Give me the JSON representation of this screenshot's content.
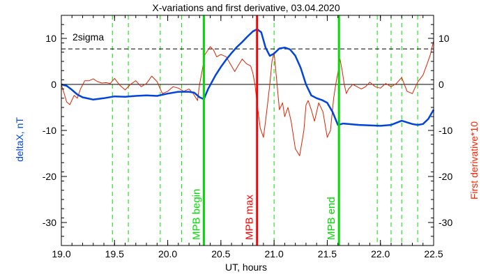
{
  "chart_data": {
    "type": "line",
    "title": "X-variations and first derivative, 03.04.2020",
    "xlabel": "UT, hours",
    "ylabel_left": "deltaX, nT",
    "ylabel_right": "First derivative*10",
    "xlim": [
      19.0,
      22.5
    ],
    "ylim": [
      -35,
      15
    ],
    "xticks": [
      19.0,
      19.5,
      20.0,
      20.5,
      21.0,
      21.5,
      22.0,
      22.5
    ],
    "xtick_labels": [
      "19.0",
      "19.5",
      "20.0",
      "20.5",
      "21.0",
      "21.5",
      "22.0",
      "22.5"
    ],
    "yticks": [
      10,
      0,
      -10,
      -20,
      -30
    ],
    "ytick_labels": [
      "10",
      "0",
      "-10",
      "-20",
      "-30"
    ],
    "threshold": {
      "label": "2sigma",
      "value": 7.7
    },
    "dashed_vlines": [
      19.48,
      19.63,
      19.93,
      20.13,
      21.0,
      21.97,
      22.1,
      22.2,
      22.35
    ],
    "markers": [
      {
        "label": "MPB begin",
        "x": 20.34,
        "color": "#00dd00"
      },
      {
        "label": "MPB max",
        "x": 20.84,
        "color": "#ff0000"
      },
      {
        "label": "MPB end",
        "x": 21.61,
        "color": "#00dd00"
      }
    ],
    "colors": {
      "deltaX": "#0044dd",
      "derivative": "#dd2200",
      "green": "#00dd00",
      "red": "#ff0000",
      "axis": "#000000",
      "left_label": "#0044dd",
      "right_label": "#ff2200"
    },
    "series": [
      {
        "name": "deltaX",
        "x": [
          19.0,
          19.05,
          19.1,
          19.15,
          19.2,
          19.3,
          19.4,
          19.5,
          19.6,
          19.7,
          19.8,
          19.9,
          20.0,
          20.1,
          20.2,
          20.25,
          20.3,
          20.34,
          20.38,
          20.45,
          20.5,
          20.55,
          20.6,
          20.65,
          20.7,
          20.75,
          20.8,
          20.84,
          20.88,
          20.92,
          20.96,
          21.0,
          21.05,
          21.1,
          21.15,
          21.2,
          21.25,
          21.3,
          21.35,
          21.4,
          21.45,
          21.5,
          21.55,
          21.6,
          21.65,
          21.7,
          21.8,
          21.9,
          22.0,
          22.1,
          22.2,
          22.3,
          22.35,
          22.4,
          22.45,
          22.5
        ],
        "values": [
          0.0,
          -0.3,
          -1.2,
          -2.2,
          -2.8,
          -3.3,
          -3.0,
          -2.6,
          -2.7,
          -2.5,
          -2.4,
          -2.5,
          -2.0,
          -1.6,
          -1.6,
          -1.8,
          -2.8,
          -3.2,
          -1.0,
          2.0,
          3.8,
          5.4,
          6.8,
          8.1,
          9.2,
          10.4,
          11.5,
          12.0,
          11.3,
          8.0,
          6.2,
          6.7,
          7.8,
          8.0,
          7.6,
          6.2,
          3.6,
          0.0,
          -2.4,
          -3.0,
          -3.4,
          -4.0,
          -6.0,
          -8.8,
          -8.5,
          -8.6,
          -8.8,
          -8.9,
          -9.0,
          -8.8,
          -7.9,
          -8.6,
          -8.8,
          -8.6,
          -7.5,
          -5.5
        ]
      },
      {
        "name": "derivative",
        "x": [
          19.0,
          19.02,
          19.05,
          19.08,
          19.12,
          19.15,
          19.18,
          19.22,
          19.26,
          19.3,
          19.34,
          19.38,
          19.42,
          19.46,
          19.5,
          19.55,
          19.6,
          19.65,
          19.7,
          19.75,
          19.8,
          19.85,
          19.9,
          19.95,
          20.0,
          20.05,
          20.1,
          20.15,
          20.2,
          20.24,
          20.28,
          20.3,
          20.32,
          20.35,
          20.38,
          20.4,
          20.43,
          20.46,
          20.5,
          20.55,
          20.6,
          20.63,
          20.66,
          20.7,
          20.74,
          20.78,
          20.8,
          20.82,
          20.84,
          20.87,
          20.9,
          20.92,
          20.94,
          20.96,
          20.98,
          21.0,
          21.02,
          21.05,
          21.08,
          21.1,
          21.13,
          21.16,
          21.2,
          21.24,
          21.28,
          21.3,
          21.32,
          21.35,
          21.38,
          21.42,
          21.46,
          21.5,
          21.53,
          21.56,
          21.58,
          21.6,
          21.62,
          21.64,
          21.66,
          21.68,
          21.7,
          21.74,
          21.78,
          21.82,
          21.86,
          21.9,
          21.95,
          22.0,
          22.05,
          22.1,
          22.15,
          22.2,
          22.25,
          22.3,
          22.35,
          22.4,
          22.44,
          22.47,
          22.5
        ],
        "values": [
          0.0,
          -1.5,
          -3.8,
          -4.4,
          -2.4,
          -3.0,
          -1.0,
          0.8,
          0.8,
          1.2,
          0.6,
          0.3,
          0.4,
          0.2,
          1.3,
          -0.2,
          -1.2,
          0.0,
          0.8,
          -0.5,
          0.2,
          1.8,
          0.6,
          -2.0,
          -1.5,
          -0.5,
          -0.8,
          -1.5,
          -1.0,
          -2.0,
          -3.5,
          0.0,
          2.5,
          6.5,
          7.5,
          8.2,
          7.5,
          6.0,
          6.5,
          6.0,
          4.0,
          2.8,
          4.0,
          5.5,
          4.5,
          4.0,
          2.5,
          0.0,
          -4.0,
          -9.5,
          -11.5,
          -8.0,
          -4.0,
          0.0,
          5.0,
          7.0,
          2.0,
          -5.5,
          -4.0,
          -7.0,
          -5.0,
          -8.0,
          -14.0,
          -15.5,
          -10.0,
          -4.5,
          -3.5,
          -5.5,
          -8.0,
          -4.0,
          -6.0,
          -11.5,
          -10.0,
          -3.0,
          0.0,
          2.5,
          5.5,
          3.0,
          0.0,
          -2.0,
          -1.0,
          0.0,
          -0.5,
          -1.0,
          -0.5,
          0.5,
          -0.5,
          -0.8,
          0.2,
          -0.5,
          0.2,
          1.5,
          -1.5,
          -2.0,
          0.5,
          2.0,
          4.5,
          6.5,
          9.5
        ]
      }
    ]
  }
}
